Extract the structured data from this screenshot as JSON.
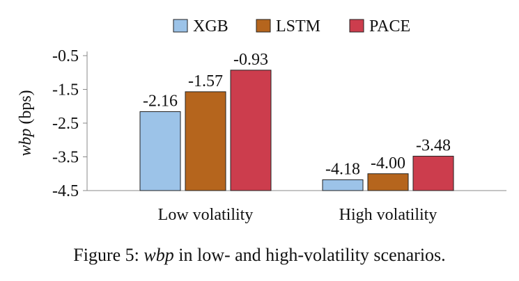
{
  "chart_data": {
    "type": "bar",
    "categories": [
      "Low volatility",
      "High volatility"
    ],
    "series": [
      {
        "name": "XGB",
        "values": [
          -2.16,
          -4.18
        ],
        "color": "#9cc3e8"
      },
      {
        "name": "LSTM",
        "values": [
          -1.57,
          -4.0
        ],
        "color": "#b5651d"
      },
      {
        "name": "PACE",
        "values": [
          -0.93,
          -3.48
        ],
        "color": "#cc3d4d"
      }
    ],
    "value_labels": [
      [
        "-2.16",
        "-1.57",
        "-0.93"
      ],
      [
        "-4.18",
        "-4.00",
        "-3.48"
      ]
    ],
    "ylabel_var": "wbp",
    "ylabel_unit": "(bps)",
    "yticks": [
      "-0.5",
      "-1.5",
      "-2.5",
      "-3.5",
      "-4.5"
    ],
    "ytick_values": [
      -0.5,
      -1.5,
      -2.5,
      -3.5,
      -4.5
    ],
    "ylim": [
      -4.5,
      -0.5
    ],
    "legend_position": "top",
    "grid": false
  },
  "caption": {
    "prefix": "Figure 5:",
    "var": "wbp",
    "suffix": "in low- and high-volatility scenarios."
  }
}
